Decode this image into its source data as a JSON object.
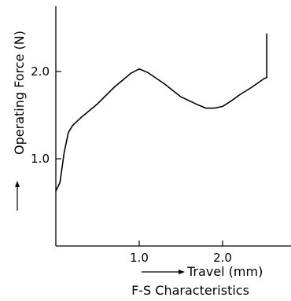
{
  "chart_data": {
    "type": "line",
    "title": "",
    "caption": "F-S Characteristics",
    "xlabel": "Travel (mm)",
    "ylabel": "Operating Force (N)",
    "xlim": [
      0,
      3.0
    ],
    "ylim": [
      0,
      2.75
    ],
    "x_ticks": [
      1.0,
      2.0
    ],
    "x_tick_labels": [
      "1.0",
      "2.0"
    ],
    "y_ticks": [
      1.0,
      2.0
    ],
    "y_tick_labels": [
      "1.0",
      "2.0"
    ],
    "grid": false,
    "series": [
      {
        "x": [
          0.0,
          0.05,
          0.1,
          0.15,
          0.2,
          0.3,
          0.5,
          0.7,
          0.9,
          1.0,
          1.1,
          1.3,
          1.5,
          1.7,
          1.8,
          1.9,
          2.0,
          2.1,
          2.2,
          2.35,
          2.5,
          2.53,
          2.53
        ],
        "y": [
          0.63,
          0.73,
          1.07,
          1.3,
          1.38,
          1.47,
          1.63,
          1.82,
          1.98,
          2.03,
          1.99,
          1.86,
          1.71,
          1.62,
          1.58,
          1.58,
          1.6,
          1.66,
          1.73,
          1.82,
          1.92,
          1.93,
          2.43
        ]
      }
    ]
  }
}
